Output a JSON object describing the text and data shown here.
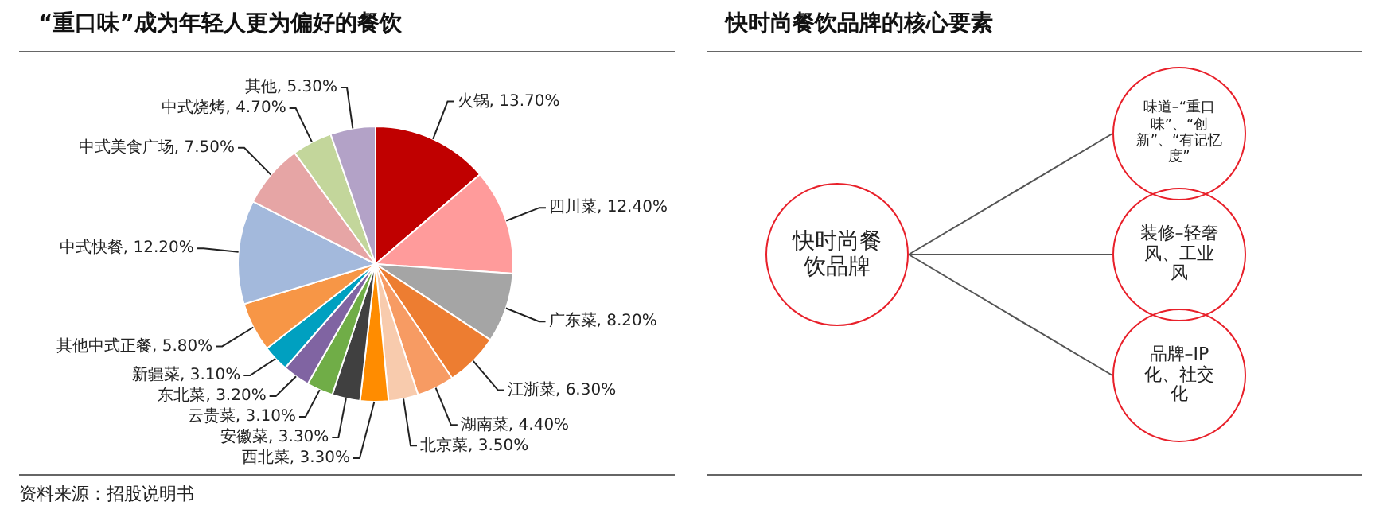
{
  "chart_data": [
    {
      "type": "pie",
      "title": "“重口味”成为年轻人更为偏好的餐饮",
      "categories": [
        "火锅",
        "四川菜",
        "广东菜",
        "江浙菜",
        "湖南菜",
        "北京菜",
        "西北菜",
        "安徽菜",
        "云贵菜",
        "东北菜",
        "新疆菜",
        "其他中式正餐",
        "中式快餐",
        "中式美食广场",
        "中式烧烤",
        "其他"
      ],
      "values": [
        13.7,
        12.4,
        8.2,
        6.3,
        4.4,
        3.5,
        3.3,
        3.3,
        3.1,
        3.2,
        3.1,
        5.8,
        12.2,
        7.5,
        4.7,
        5.3
      ],
      "value_labels": [
        "13.70%",
        "12.40%",
        "8.20%",
        "6.30%",
        "4.40%",
        "3.50%",
        "3.30%",
        "3.30%",
        "3.10%",
        "3.20%",
        "3.10%",
        "5.80%",
        "12.20%",
        "7.50%",
        "4.70%",
        "5.30%"
      ],
      "colors": [
        "#c00000",
        "#ff9b9b",
        "#a5a5a5",
        "#ed7d31",
        "#f79b63",
        "#f8cbad",
        "#ff8c00",
        "#404040",
        "#70ad47",
        "#8064a2",
        "#00a0c0",
        "#f79646",
        "#a3b9dc",
        "#e6a5a5",
        "#c3d69b",
        "#b3a2c7"
      ],
      "legend": false,
      "annotations": [
        "资料来源：招股说明书"
      ]
    },
    {
      "type": "other",
      "title": "快时尚餐饮品牌的核心要素",
      "annotations": [
        "快时尚餐饮品牌",
        "味道–“重口味”、“创新”、“有记忆度”",
        "装修–轻奢风、工业风",
        "品牌–IP化、社交化"
      ]
    }
  ]
}
